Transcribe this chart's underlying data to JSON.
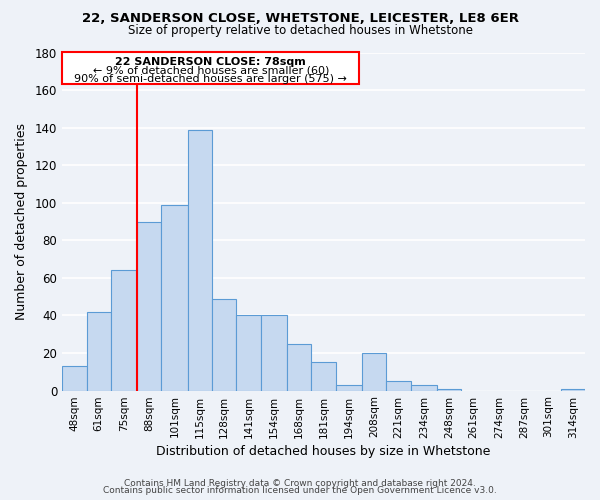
{
  "title1": "22, SANDERSON CLOSE, WHETSTONE, LEICESTER, LE8 6ER",
  "title2": "Size of property relative to detached houses in Whetstone",
  "xlabel": "Distribution of detached houses by size in Whetstone",
  "ylabel": "Number of detached properties",
  "bar_labels": [
    "48sqm",
    "61sqm",
    "75sqm",
    "88sqm",
    "101sqm",
    "115sqm",
    "128sqm",
    "141sqm",
    "154sqm",
    "168sqm",
    "181sqm",
    "194sqm",
    "208sqm",
    "221sqm",
    "234sqm",
    "248sqm",
    "261sqm",
    "274sqm",
    "287sqm",
    "301sqm",
    "314sqm"
  ],
  "bar_heights": [
    13,
    42,
    64,
    90,
    99,
    139,
    49,
    40,
    40,
    25,
    15,
    3,
    20,
    5,
    3,
    1,
    0,
    0,
    0,
    0,
    1
  ],
  "bar_color": "#c6d9f0",
  "bar_edge_color": "#5b9bd5",
  "bin_edges": [
    41.5,
    54.5,
    67.5,
    81.5,
    94.5,
    108.5,
    121.5,
    134.5,
    147.5,
    161.5,
    174.5,
    187.5,
    201.5,
    214.5,
    227.5,
    241.5,
    254.5,
    267.5,
    281.5,
    294.5,
    307.5,
    320.5
  ],
  "annotation_title": "22 SANDERSON CLOSE: 78sqm",
  "annotation_line1": "← 9% of detached houses are smaller (60)",
  "annotation_line2": "90% of semi-detached houses are larger (575) →",
  "ylim": [
    0,
    180
  ],
  "yticks": [
    0,
    20,
    40,
    60,
    80,
    100,
    120,
    140,
    160,
    180
  ],
  "footer1": "Contains HM Land Registry data © Crown copyright and database right 2024.",
  "footer2": "Contains public sector information licensed under the Open Government Licence v3.0.",
  "bg_color": "#eef2f8",
  "grid_color": "white",
  "red_line_x": 81.5
}
